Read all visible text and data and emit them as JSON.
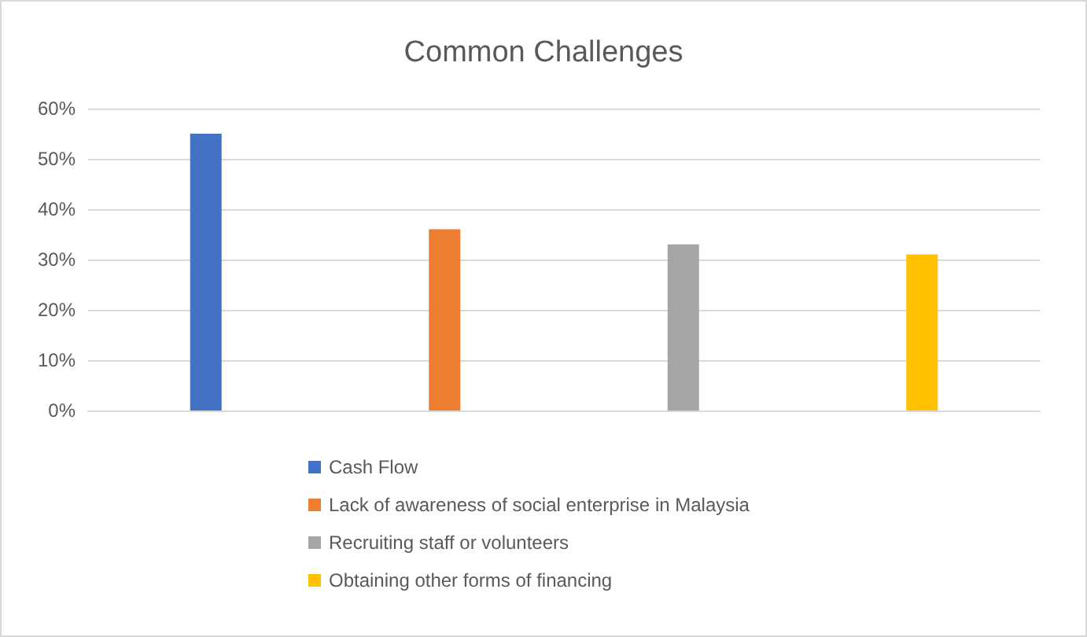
{
  "chart_data": {
    "type": "bar",
    "title": "Common Challenges",
    "categories": [
      null
    ],
    "series": [
      {
        "name": "Cash Flow",
        "color": "#4472c4",
        "values": [
          55
        ]
      },
      {
        "name": "Lack of awareness of social enterprise in Malaysia",
        "color": "#ed7d31",
        "values": [
          36
        ]
      },
      {
        "name": "Recruiting staff or volunteers",
        "color": "#a5a5a5",
        "values": [
          33
        ]
      },
      {
        "name": "Obtaining other forms of financing",
        "color": "#ffc000",
        "values": [
          31
        ]
      }
    ],
    "ylim": [
      0,
      60
    ],
    "yticks": [
      {
        "value": 0,
        "label": "0%"
      },
      {
        "value": 10,
        "label": "10%"
      },
      {
        "value": 20,
        "label": "20%"
      },
      {
        "value": 30,
        "label": "30%"
      },
      {
        "value": 40,
        "label": "40%"
      },
      {
        "value": 50,
        "label": "50%"
      },
      {
        "value": 60,
        "label": "60%"
      }
    ],
    "grid": "y",
    "legend": "bottom"
  }
}
